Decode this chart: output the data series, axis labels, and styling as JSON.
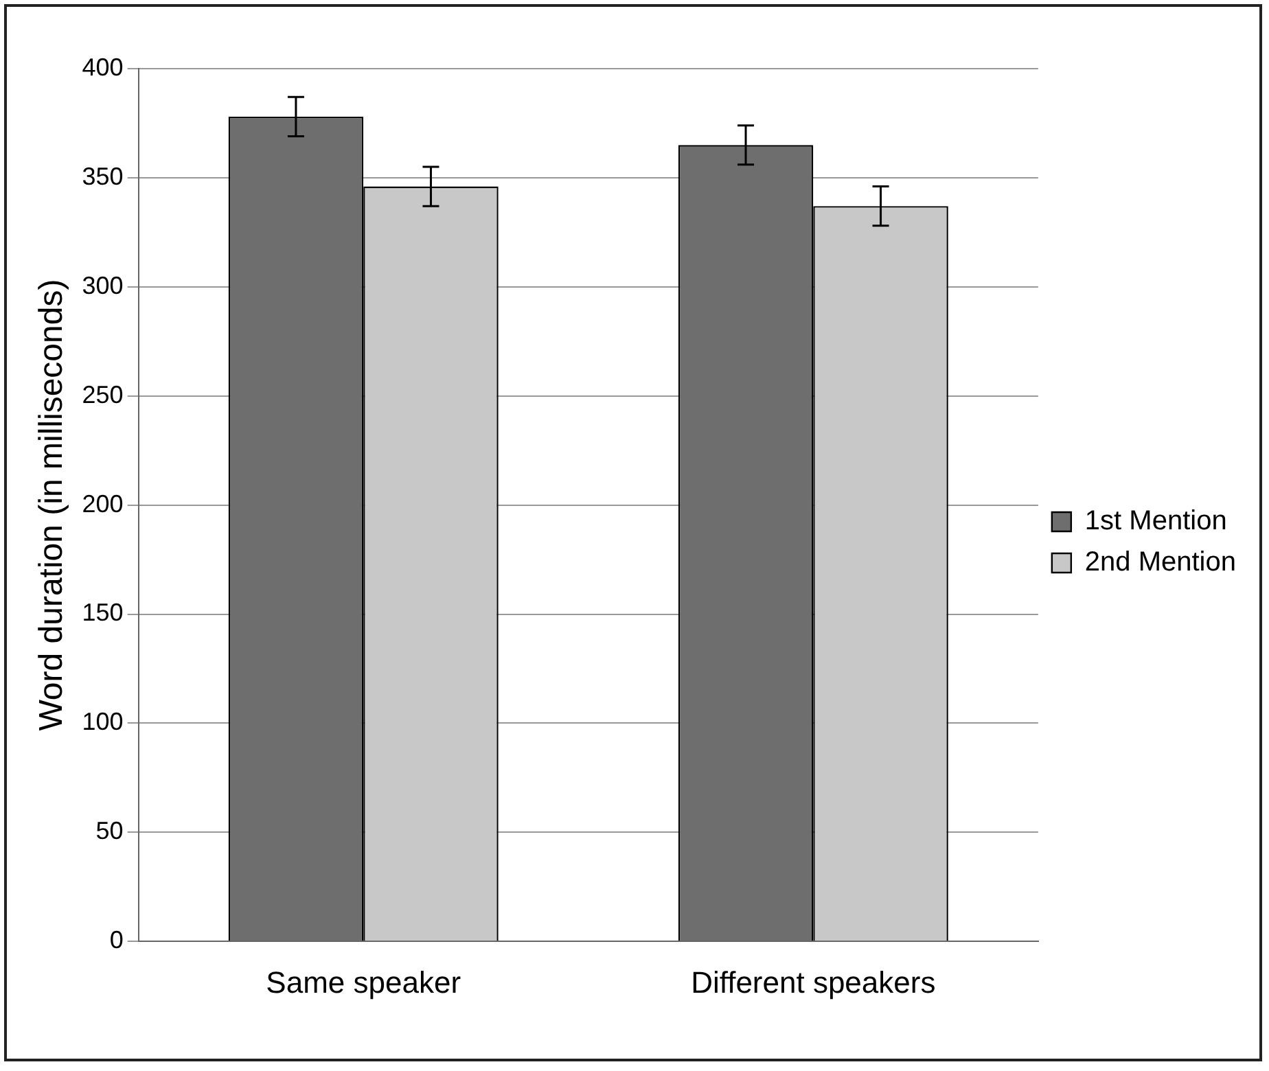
{
  "chart_data": {
    "type": "bar",
    "ylabel": "Word duration (in milliseconds)",
    "categories": [
      "Same speaker",
      "Different speakers"
    ],
    "series": [
      {
        "name": "1st Mention",
        "color": "#6e6e6e",
        "values": [
          378,
          365
        ],
        "errors": [
          9,
          9
        ]
      },
      {
        "name": "2nd Mention",
        "color": "#c8c8c8",
        "values": [
          346,
          337
        ],
        "errors": [
          9,
          9
        ]
      }
    ],
    "ylim": [
      0,
      400
    ],
    "yticks": [
      0,
      50,
      100,
      150,
      200,
      250,
      300,
      350,
      400
    ],
    "grid": "y",
    "legend": "right"
  }
}
